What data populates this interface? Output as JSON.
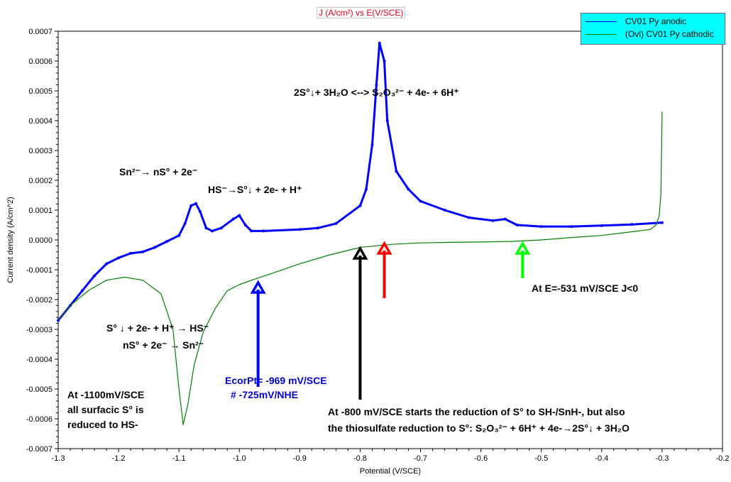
{
  "chart_data": {
    "type": "line",
    "title": "J (A/cm²) vs E(V/SCE)",
    "xlabel": "Potential (V/SCE)",
    "ylabel": "Current density (A/cm^2)",
    "xlim": [
      -1.3,
      -0.2
    ],
    "ylim": [
      -0.0007,
      0.0007
    ],
    "xticks": [
      "-1.3",
      "-1.2",
      "-1.1",
      "-1.0",
      "-0.9",
      "-0.8",
      "-0.7",
      "-0.6",
      "-0.5",
      "-0.4",
      "-0.3",
      "-0.2"
    ],
    "yticks": [
      "0.0007",
      "0.0006",
      "0.0005",
      "0.0004",
      "0.0003",
      "0.0002",
      "0.0001",
      "0.0000",
      "-0.0001",
      "-0.0002",
      "-0.0003",
      "-0.0004",
      "-0.0005",
      "-0.0006",
      "-0.0007"
    ],
    "grid": false,
    "legend_position": "top-right",
    "series": [
      {
        "name": "CV01 Py anodic",
        "color": "#0000ff",
        "points": [
          [
            -1.3,
            -0.00027
          ],
          [
            -1.28,
            -0.00022
          ],
          [
            -1.26,
            -0.00017
          ],
          [
            -1.24,
            -0.00012
          ],
          [
            -1.22,
            -8e-05
          ],
          [
            -1.2,
            -6e-05
          ],
          [
            -1.18,
            -4.5e-05
          ],
          [
            -1.16,
            -4e-05
          ],
          [
            -1.14,
            -2.5e-05
          ],
          [
            -1.12,
            -5e-06
          ],
          [
            -1.1,
            1.5e-05
          ],
          [
            -1.09,
            5.5e-05
          ],
          [
            -1.08,
            0.000115
          ],
          [
            -1.072,
            0.000122
          ],
          [
            -1.065,
            9.5e-05
          ],
          [
            -1.055,
            4e-05
          ],
          [
            -1.045,
            3e-05
          ],
          [
            -1.03,
            4e-05
          ],
          [
            -1.01,
            7e-05
          ],
          [
            -1.0,
            8.2e-05
          ],
          [
            -0.99,
            5e-05
          ],
          [
            -0.98,
            3e-05
          ],
          [
            -0.96,
            3e-05
          ],
          [
            -0.9,
            3.5e-05
          ],
          [
            -0.87,
            4e-05
          ],
          [
            -0.84,
            5.5e-05
          ],
          [
            -0.8,
            0.000115
          ],
          [
            -0.79,
            0.00017
          ],
          [
            -0.78,
            0.00032
          ],
          [
            -0.773,
            0.00052
          ],
          [
            -0.768,
            0.00066
          ],
          [
            -0.76,
            0.0006
          ],
          [
            -0.755,
            0.0004
          ],
          [
            -0.74,
            0.00023
          ],
          [
            -0.72,
            0.00017
          ],
          [
            -0.7,
            0.00013
          ],
          [
            -0.66,
            0.0001
          ],
          [
            -0.62,
            7.5e-05
          ],
          [
            -0.58,
            6.5e-05
          ],
          [
            -0.56,
            7e-05
          ],
          [
            -0.54,
            5e-05
          ],
          [
            -0.5,
            4.5e-05
          ],
          [
            -0.45,
            4.5e-05
          ],
          [
            -0.4,
            4.8e-05
          ],
          [
            -0.35,
            5.2e-05
          ],
          [
            -0.3,
            5.8e-05
          ]
        ]
      },
      {
        "name": "(Ovl) CV01 Py cathodic",
        "color": "#008000",
        "points": [
          [
            -0.3,
            0.00043
          ],
          [
            -0.302,
            0.00015
          ],
          [
            -0.305,
            8e-05
          ],
          [
            -0.31,
            5e-05
          ],
          [
            -0.32,
            3.5e-05
          ],
          [
            -0.36,
            2.5e-05
          ],
          [
            -0.4,
            1.5e-05
          ],
          [
            -0.45,
            8e-06
          ],
          [
            -0.5,
            0.0
          ],
          [
            -0.55,
            -5e-06
          ],
          [
            -0.6,
            -7e-06
          ],
          [
            -0.65,
            -8e-06
          ],
          [
            -0.7,
            -1e-05
          ],
          [
            -0.75,
            -1.5e-05
          ],
          [
            -0.8,
            -2.5e-05
          ],
          [
            -0.85,
            -5e-05
          ],
          [
            -0.9,
            -8e-05
          ],
          [
            -0.95,
            -0.000115
          ],
          [
            -0.98,
            -0.000135
          ],
          [
            -1.0,
            -0.00015
          ],
          [
            -1.02,
            -0.00017
          ],
          [
            -1.04,
            -0.00023
          ],
          [
            -1.06,
            -0.00031
          ],
          [
            -1.075,
            -0.00042
          ],
          [
            -1.085,
            -0.00055
          ],
          [
            -1.093,
            -0.00062
          ],
          [
            -1.1,
            -0.0005
          ],
          [
            -1.11,
            -0.0003
          ],
          [
            -1.13,
            -0.00018
          ],
          [
            -1.16,
            -0.000135
          ],
          [
            -1.19,
            -0.000125
          ],
          [
            -1.22,
            -0.000135
          ],
          [
            -1.25,
            -0.00017
          ],
          [
            -1.28,
            -0.00022
          ],
          [
            -1.3,
            -0.00027
          ]
        ]
      }
    ],
    "annotations": {
      "reaction_thiosulfate": "2S°↓+ 3H₂O <--> S₂O₃²⁻ + 4e- + 6H⁺",
      "reaction_polysulfide": "Sn²⁻→ nS° + 2e⁻",
      "reaction_hs": "HS⁻→S°↓ + 2e- + H⁺",
      "reaction_s_reduction": "S° ↓ + 2e- + H⁺ → HS⁻",
      "reaction_ns_reduction": "nS° + 2e⁻ → Sn²⁻",
      "ecorr_line1": "EcorPt= -969 mV/SCE",
      "ecorr_line2": "# -725mV/NHE",
      "at1100_line1": "At -1100mV/SCE",
      "at1100_line2": "all surfacic S° is",
      "at1100_line3": "reduced to HS-",
      "at800_line1": "At -800 mV/SCE starts the reduction of S° to SH-/SnH-, but also",
      "at800_line2": "the thiosulfate reduction to S°: S₂O₃²⁻ + 6H⁺ + 4e-→2S°↓ + 3H₂O",
      "at531": "At E=-531 mV/SCE J<0"
    },
    "arrows": [
      {
        "color": "#0000ff",
        "x": -0.969
      },
      {
        "color": "#000000",
        "x": -0.8
      },
      {
        "color": "#ff0000",
        "x": -0.76
      },
      {
        "color": "#00ff00",
        "x": -0.531
      }
    ]
  }
}
